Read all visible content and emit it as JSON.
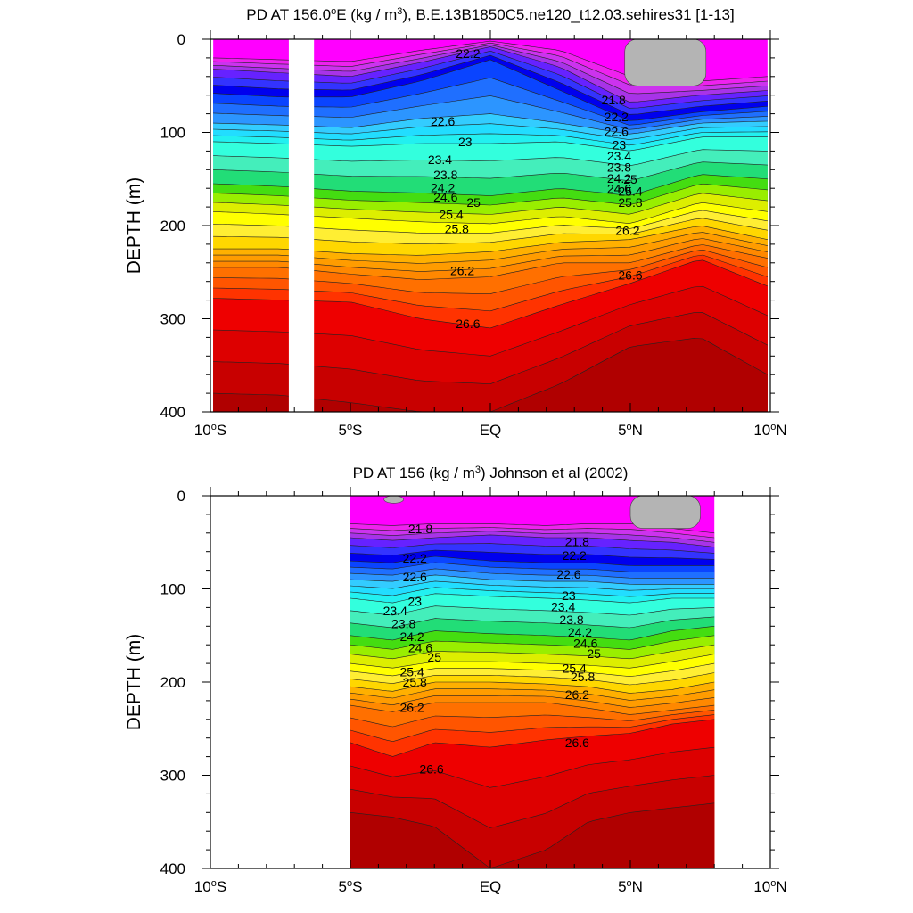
{
  "chart_data": [
    {
      "type": "contour",
      "title": "PD AT 156.0°E (kg / m³), B.E.13B1850C5.ne120_t12.03.sehires31 [1-13]",
      "title_parts": {
        "main": "PD AT 156.0",
        "deg": "o",
        "unit_open": "E (kg / m",
        "sup": "3",
        "rest": "), B.E.13B1850C5.ne120_t12.03.sehires31 [1-13]"
      },
      "xlabel": "",
      "ylabel": "DEPTH (m)",
      "xlim": [
        -10,
        10
      ],
      "ylim": [
        400,
        0
      ],
      "x_ticks": [
        {
          "v": -10,
          "label": "10",
          "deg": "o",
          "hemi": "S"
        },
        {
          "v": -5,
          "label": "5",
          "deg": "o",
          "hemi": "S"
        },
        {
          "v": 0,
          "label": "EQ",
          "deg": "",
          "hemi": ""
        },
        {
          "v": 5,
          "label": "5",
          "deg": "o",
          "hemi": "N"
        },
        {
          "v": 10,
          "label": "10",
          "deg": "o",
          "hemi": "N"
        }
      ],
      "y_ticks": [
        {
          "v": 0,
          "label": "0"
        },
        {
          "v": 100,
          "label": "100"
        },
        {
          "v": 200,
          "label": "200"
        },
        {
          "v": 300,
          "label": "300"
        },
        {
          "v": 400,
          "label": "400"
        }
      ],
      "data_xrange": [
        -9.9,
        9.9
      ],
      "contour_levels": [
        21.4,
        21.6,
        21.8,
        22.0,
        22.2,
        22.4,
        22.6,
        22.8,
        23.0,
        23.2,
        23.4,
        23.6,
        23.8,
        24.0,
        24.2,
        24.4,
        24.6,
        24.8,
        25.0,
        25.2,
        25.4,
        25.6,
        25.8,
        26.0,
        26.2,
        26.4,
        26.6,
        26.8,
        27.0
      ],
      "level_depth_profile": {
        "lon": [
          -9.9,
          -7.5,
          -5,
          -2.5,
          0,
          2.5,
          5,
          7.5,
          9.9
        ],
        "21.6": [
          20,
          22,
          24,
          12,
          2,
          12,
          40,
          45,
          40
        ],
        "21.8": [
          32,
          36,
          40,
          25,
          8,
          30,
          68,
          60,
          55
        ],
        "22.2": [
          58,
          62,
          62,
          45,
          22,
          55,
          88,
          78,
          72
        ],
        "22.6": [
          90,
          92,
          95,
          85,
          80,
          90,
          102,
          90,
          88
        ],
        "23.0": [
          110,
          112,
          115,
          112,
          112,
          110,
          120,
          105,
          105
        ],
        "24.2": [
          155,
          158,
          163,
          165,
          168,
          160,
          168,
          145,
          150
        ],
        "25.0": [
          185,
          188,
          192,
          196,
          198,
          190,
          198,
          175,
          185
        ],
        "25.8": [
          225,
          225,
          230,
          232,
          228,
          218,
          215,
          200,
          215
        ],
        "26.2": [
          245,
          245,
          252,
          258,
          255,
          240,
          240,
          220,
          235
        ],
        "26.6": [
          278,
          280,
          282,
          300,
          310,
          285,
          262,
          236,
          265
        ],
        "27.0": [
          380,
          382,
          390,
          400,
          400,
          370,
          330,
          320,
          360
        ]
      },
      "contour_labels": [
        {
          "value": "22.2",
          "lon": -0.8,
          "depth": 20
        },
        {
          "value": "22.6",
          "lon": -1.7,
          "depth": 93
        },
        {
          "value": "23",
          "lon": -0.9,
          "depth": 115
        },
        {
          "value": "23.4",
          "lon": -1.8,
          "depth": 134
        },
        {
          "value": "23.8",
          "lon": -1.6,
          "depth": 150
        },
        {
          "value": "24.2",
          "lon": -1.7,
          "depth": 164
        },
        {
          "value": "24.6",
          "lon": -1.6,
          "depth": 174
        },
        {
          "value": "25",
          "lon": -0.6,
          "depth": 180
        },
        {
          "value": "25.4",
          "lon": -1.4,
          "depth": 193
        },
        {
          "value": "25.8",
          "lon": -1.2,
          "depth": 208
        },
        {
          "value": "26.2",
          "lon": -1.0,
          "depth": 253
        },
        {
          "value": "26.6",
          "lon": -0.8,
          "depth": 310
        },
        {
          "value": "21.8",
          "lon": 4.4,
          "depth": 70
        },
        {
          "value": "22.2",
          "lon": 4.5,
          "depth": 88
        },
        {
          "value": "22.6",
          "lon": 4.5,
          "depth": 104
        },
        {
          "value": "23",
          "lon": 4.6,
          "depth": 118
        },
        {
          "value": "23.4",
          "lon": 4.6,
          "depth": 130
        },
        {
          "value": "23.8",
          "lon": 4.6,
          "depth": 142
        },
        {
          "value": "24.2",
          "lon": 4.6,
          "depth": 154
        },
        {
          "value": "24.6",
          "lon": 4.6,
          "depth": 165
        },
        {
          "value": "25",
          "lon": 5.0,
          "depth": 155
        },
        {
          "value": "25.4",
          "lon": 5.0,
          "depth": 168
        },
        {
          "value": "25.8",
          "lon": 5.0,
          "depth": 180
        },
        {
          "value": "26.2",
          "lon": 4.9,
          "depth": 210
        },
        {
          "value": "26.6",
          "lon": 5.0,
          "depth": 258
        }
      ],
      "missing_regions": [
        {
          "type": "land_gray",
          "lon_range": [
            4.8,
            7.7
          ],
          "depth_range": [
            0,
            50
          ]
        },
        {
          "type": "missing_white",
          "lon_range": [
            -7.2,
            -6.3
          ],
          "depth_range": [
            0,
            400
          ]
        }
      ]
    },
    {
      "type": "contour",
      "title": "PD AT 156 (kg / m³) Johnson et al (2002)",
      "title_parts": {
        "main": "PD AT 156 (kg / m",
        "sup": "3",
        "rest": ") Johnson et al (2002)"
      },
      "xlabel": "",
      "ylabel": "DEPTH (m)",
      "xlim": [
        -10,
        10
      ],
      "ylim": [
        400,
        0
      ],
      "x_ticks": [
        {
          "v": -10,
          "label": "10",
          "deg": "o",
          "hemi": "S"
        },
        {
          "v": -5,
          "label": "5",
          "deg": "o",
          "hemi": "S"
        },
        {
          "v": 0,
          "label": "EQ",
          "deg": "",
          "hemi": ""
        },
        {
          "v": 5,
          "label": "5",
          "deg": "o",
          "hemi": "N"
        },
        {
          "v": 10,
          "label": "10",
          "deg": "o",
          "hemi": "N"
        }
      ],
      "y_ticks": [
        {
          "v": 0,
          "label": "0"
        },
        {
          "v": 100,
          "label": "100"
        },
        {
          "v": 200,
          "label": "200"
        },
        {
          "v": 300,
          "label": "300"
        },
        {
          "v": 400,
          "label": "400"
        }
      ],
      "data_xrange": [
        -5,
        8
      ],
      "contour_levels": [
        21.4,
        21.6,
        21.8,
        22.0,
        22.2,
        22.4,
        22.6,
        22.8,
        23.0,
        23.2,
        23.4,
        23.6,
        23.8,
        24.0,
        24.2,
        24.4,
        24.6,
        24.8,
        25.0,
        25.2,
        25.4,
        25.6,
        25.8,
        26.0,
        26.2,
        26.4,
        26.6,
        26.8,
        27.0
      ],
      "level_depth_profile": {
        "lon": [
          -5,
          -3.5,
          -2,
          0,
          2,
          3.5,
          5,
          6.5,
          8
        ],
        "21.6": [
          30,
          32,
          30,
          30,
          32,
          30,
          30,
          35,
          40
        ],
        "21.8": [
          45,
          48,
          45,
          42,
          45,
          45,
          48,
          50,
          55
        ],
        "22.2": [
          70,
          72,
          65,
          70,
          72,
          72,
          75,
          75,
          75
        ],
        "22.6": [
          90,
          92,
          85,
          90,
          92,
          92,
          95,
          95,
          95
        ],
        "23.0": [
          110,
          115,
          105,
          108,
          110,
          112,
          115,
          110,
          110
        ],
        "24.2": [
          150,
          155,
          145,
          148,
          150,
          152,
          155,
          145,
          140
        ],
        "25.0": [
          180,
          185,
          178,
          178,
          180,
          182,
          185,
          178,
          170
        ],
        "25.8": [
          205,
          210,
          200,
          200,
          202,
          205,
          212,
          208,
          200
        ],
        "26.2": [
          225,
          232,
          222,
          222,
          222,
          228,
          235,
          230,
          225
        ],
        "26.6": [
          265,
          280,
          265,
          270,
          262,
          258,
          255,
          245,
          240
        ],
        "27.0": [
          340,
          345,
          355,
          400,
          380,
          350,
          340,
          335,
          330
        ]
      },
      "contour_labels": [
        {
          "value": "21.8",
          "lon": -2.5,
          "depth": 40
        },
        {
          "value": "22.2",
          "lon": -2.7,
          "depth": 72
        },
        {
          "value": "22.6",
          "lon": -2.7,
          "depth": 92
        },
        {
          "value": "23",
          "lon": -2.7,
          "depth": 118
        },
        {
          "value": "23.4",
          "lon": -3.4,
          "depth": 128
        },
        {
          "value": "23.8",
          "lon": -3.1,
          "depth": 142
        },
        {
          "value": "24.2",
          "lon": -2.8,
          "depth": 156
        },
        {
          "value": "24.6",
          "lon": -2.5,
          "depth": 168
        },
        {
          "value": "25",
          "lon": -2.0,
          "depth": 178
        },
        {
          "value": "25.4",
          "lon": -2.8,
          "depth": 194
        },
        {
          "value": "25.8",
          "lon": -2.7,
          "depth": 205
        },
        {
          "value": "26.2",
          "lon": -2.8,
          "depth": 232
        },
        {
          "value": "26.6",
          "lon": -2.1,
          "depth": 298
        },
        {
          "value": "21.8",
          "lon": 3.1,
          "depth": 54
        },
        {
          "value": "22.2",
          "lon": 3.0,
          "depth": 69
        },
        {
          "value": "22.6",
          "lon": 2.8,
          "depth": 89
        },
        {
          "value": "23",
          "lon": 2.8,
          "depth": 112
        },
        {
          "value": "23.4",
          "lon": 2.6,
          "depth": 124
        },
        {
          "value": "23.8",
          "lon": 2.9,
          "depth": 138
        },
        {
          "value": "24.2",
          "lon": 3.2,
          "depth": 151
        },
        {
          "value": "24.6",
          "lon": 3.4,
          "depth": 163
        },
        {
          "value": "25",
          "lon": 3.7,
          "depth": 174
        },
        {
          "value": "25.4",
          "lon": 3.0,
          "depth": 190
        },
        {
          "value": "25.8",
          "lon": 3.3,
          "depth": 199
        },
        {
          "value": "26.2",
          "lon": 3.1,
          "depth": 218
        },
        {
          "value": "26.6",
          "lon": 3.1,
          "depth": 270
        }
      ],
      "missing_regions": [
        {
          "type": "land_gray",
          "lon_range": [
            5.0,
            7.5
          ],
          "depth_range": [
            0,
            35
          ]
        },
        {
          "type": "land_gray",
          "lon_range": [
            -3.8,
            -3.1
          ],
          "depth_range": [
            0,
            8
          ]
        }
      ]
    }
  ]
}
